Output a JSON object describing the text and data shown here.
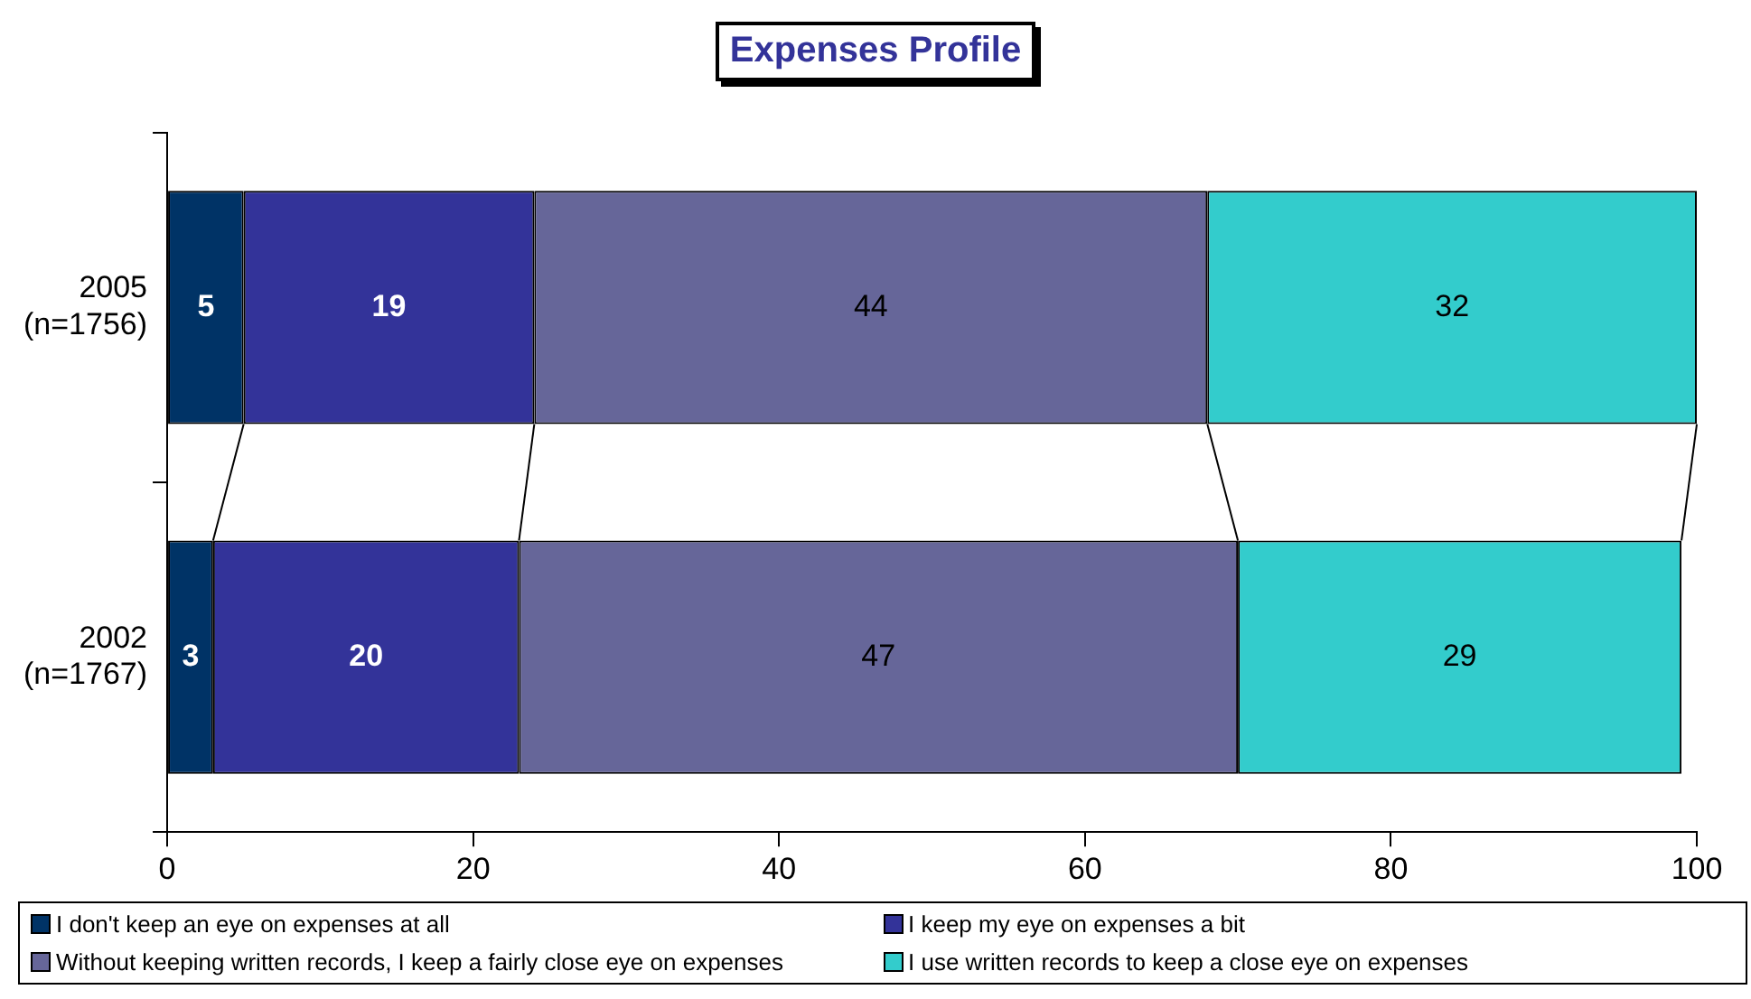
{
  "chart_data": {
    "type": "bar",
    "orientation": "horizontal",
    "stacked": true,
    "title": "Expenses Profile",
    "categories": [
      "2005\n(n=1756)",
      "2002\n(n=1767)"
    ],
    "series": [
      {
        "name": "I don't keep an eye on expenses at all",
        "color": "#003366",
        "values": [
          5,
          3
        ]
      },
      {
        "name": "I keep my eye on expenses a bit",
        "color": "#333399",
        "values": [
          19,
          20
        ]
      },
      {
        "name": "Without keeping written records, I keep a fairly close eye on expenses",
        "color": "#666699",
        "values": [
          44,
          47
        ]
      },
      {
        "name": "I use written records to keep a close eye on expenses",
        "color": "#33cccc",
        "values": [
          32,
          29
        ]
      }
    ],
    "xlim": [
      0,
      100
    ],
    "xticks": [
      0,
      20,
      40,
      60,
      80,
      100
    ],
    "grid": false,
    "legend": "bottom",
    "data_labels": true
  }
}
